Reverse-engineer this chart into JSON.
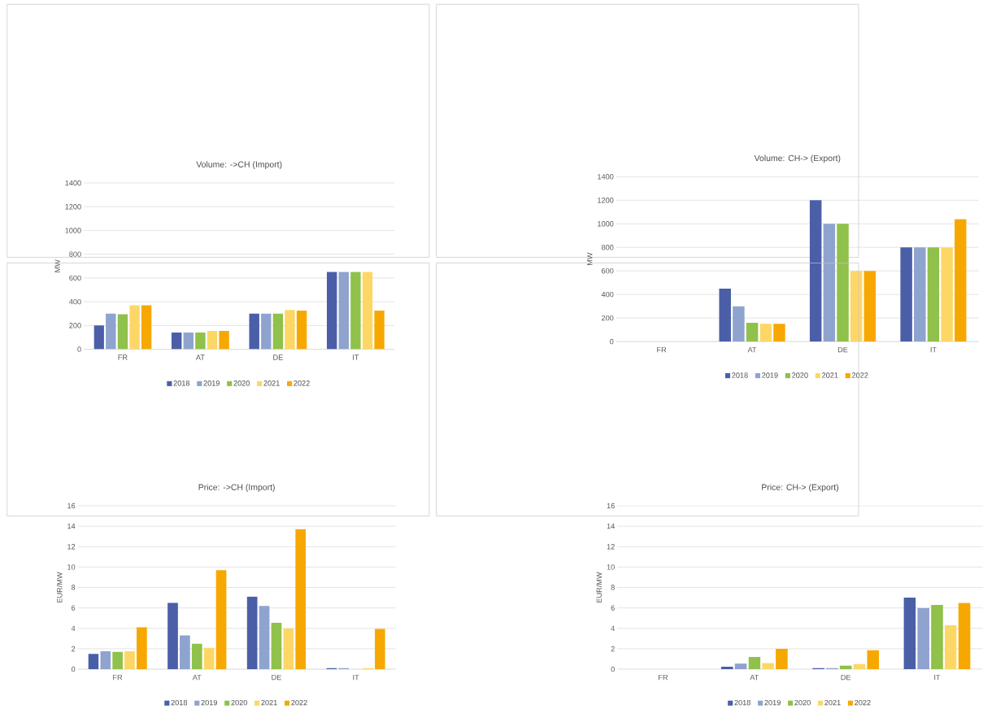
{
  "chart_data": [
    {
      "type": "bar",
      "title": "Volume: ->CH (Import)",
      "ylabel": "MW",
      "categories": [
        "FR",
        "AT",
        "DE",
        "IT"
      ],
      "ylim": [
        0,
        1400
      ],
      "yticks": [
        0,
        200,
        400,
        600,
        800,
        1000,
        1200,
        1400
      ],
      "grid": "y",
      "legend": "bottom",
      "series": [
        {
          "name": "2018",
          "color": "#4a5fa8",
          "values": [
            200,
            140,
            300,
            650
          ]
        },
        {
          "name": "2019",
          "color": "#8fa3cf",
          "values": [
            300,
            140,
            300,
            650
          ]
        },
        {
          "name": "2020",
          "color": "#8fc14b",
          "values": [
            295,
            140,
            300,
            650
          ]
        },
        {
          "name": "2021",
          "color": "#fdd766",
          "values": [
            370,
            155,
            330,
            650
          ]
        },
        {
          "name": "2022",
          "color": "#f7a800",
          "values": [
            370,
            155,
            325,
            325
          ]
        }
      ]
    },
    {
      "type": "bar",
      "title": "Volume: CH-> (Export)",
      "ylabel": "MW",
      "categories": [
        "FR",
        "AT",
        "DE",
        "IT"
      ],
      "ylim": [
        0,
        1400
      ],
      "yticks": [
        0,
        200,
        400,
        600,
        800,
        1000,
        1200,
        1400
      ],
      "grid": "y",
      "legend": "bottom",
      "series": [
        {
          "name": "2018",
          "color": "#4a5fa8",
          "values": [
            null,
            450,
            1200,
            800
          ]
        },
        {
          "name": "2019",
          "color": "#8fa3cf",
          "values": [
            null,
            300,
            1000,
            800
          ]
        },
        {
          "name": "2020",
          "color": "#8fc14b",
          "values": [
            null,
            160,
            1000,
            800
          ]
        },
        {
          "name": "2021",
          "color": "#fdd766",
          "values": [
            null,
            150,
            600,
            800
          ]
        },
        {
          "name": "2022",
          "color": "#f7a800",
          "values": [
            null,
            150,
            600,
            1040
          ]
        }
      ]
    },
    {
      "type": "bar",
      "title": "Price: ->CH (Import)",
      "ylabel": "EUR/MW",
      "categories": [
        "FR",
        "AT",
        "DE",
        "IT"
      ],
      "ylim": [
        0,
        16
      ],
      "yticks": [
        0,
        2,
        4,
        6,
        8,
        10,
        12,
        14,
        16
      ],
      "grid": "y",
      "legend": "bottom",
      "series": [
        {
          "name": "2018",
          "color": "#4a5fa8",
          "values": [
            1.5,
            6.5,
            7.1,
            0.1
          ]
        },
        {
          "name": "2019",
          "color": "#8fa3cf",
          "values": [
            1.75,
            3.3,
            6.2,
            0.1
          ]
        },
        {
          "name": "2020",
          "color": "#8fc14b",
          "values": [
            1.7,
            2.5,
            4.55,
            null
          ]
        },
        {
          "name": "2021",
          "color": "#fdd766",
          "values": [
            1.75,
            2.1,
            4.0,
            0.1
          ]
        },
        {
          "name": "2022",
          "color": "#f7a800",
          "values": [
            4.1,
            9.7,
            13.7,
            3.95
          ]
        }
      ]
    },
    {
      "type": "bar",
      "title": "Price: CH-> (Export)",
      "ylabel": "EUR/MW",
      "categories": [
        "FR",
        "AT",
        "DE",
        "IT"
      ],
      "ylim": [
        0,
        16
      ],
      "yticks": [
        0,
        2,
        4,
        6,
        8,
        10,
        12,
        14,
        16
      ],
      "grid": "y",
      "legend": "bottom",
      "series": [
        {
          "name": "2018",
          "color": "#4a5fa8",
          "values": [
            null,
            0.25,
            0.1,
            7.0
          ]
        },
        {
          "name": "2019",
          "color": "#8fa3cf",
          "values": [
            null,
            0.55,
            0.1,
            6.0
          ]
        },
        {
          "name": "2020",
          "color": "#8fc14b",
          "values": [
            null,
            1.2,
            0.35,
            6.3
          ]
        },
        {
          "name": "2021",
          "color": "#fdd766",
          "values": [
            null,
            0.6,
            0.5,
            4.3
          ]
        },
        {
          "name": "2022",
          "color": "#f7a800",
          "values": [
            null,
            2.0,
            1.85,
            6.5
          ]
        }
      ]
    }
  ]
}
